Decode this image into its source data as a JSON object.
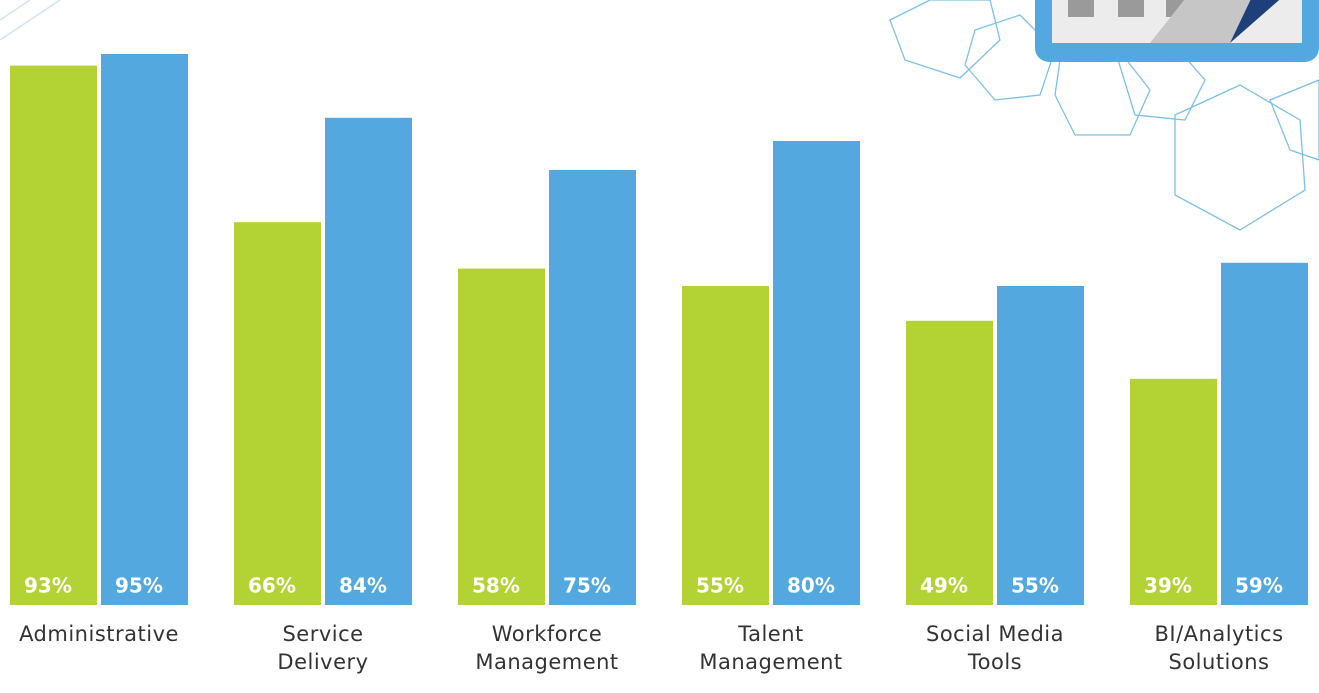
{
  "chart_data": {
    "type": "bar",
    "categories": [
      "Administrative",
      "Service Delivery",
      "Workforce Management",
      "Talent Management",
      "Social Media Tools",
      "BI/Analytics Solutions"
    ],
    "series": [
      {
        "color": "#b3d234",
        "values": [
          93,
          66,
          58,
          55,
          49,
          39
        ],
        "value_labels": [
          "93%",
          "66%",
          "58%",
          "55%",
          "49%",
          "39%"
        ]
      },
      {
        "color": "#52a8df",
        "values": [
          95,
          84,
          75,
          80,
          55,
          59
        ],
        "value_labels": [
          "95%",
          "84%",
          "75%",
          "80%",
          "55%",
          "59%"
        ]
      }
    ]
  }
}
